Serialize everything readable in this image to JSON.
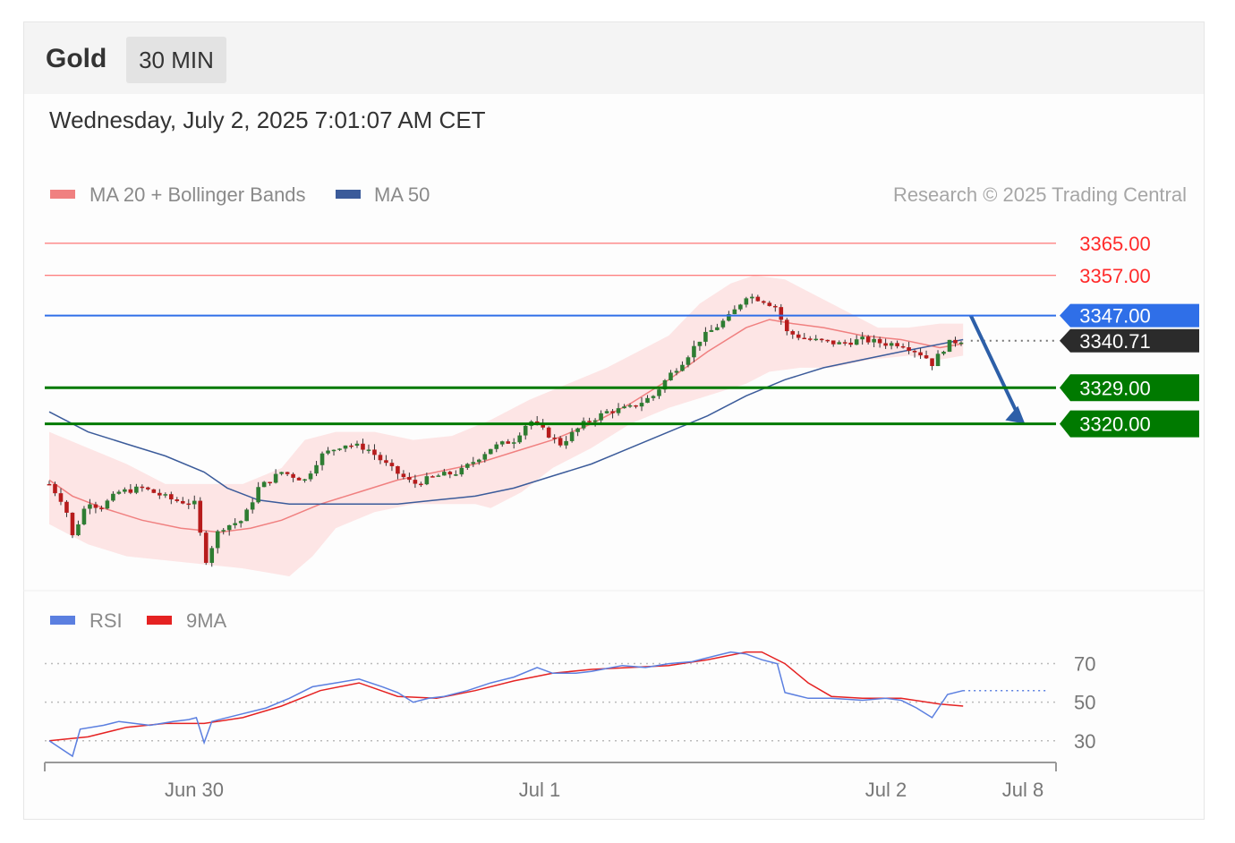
{
  "header": {
    "instrument": "Gold",
    "period": "30 MIN"
  },
  "timestamp": "Wednesday, July 2, 2025 7:01:07 AM CET",
  "legend": {
    "ma20_label": "MA 20 + Bollinger Bands",
    "ma50_label": "MA 50",
    "copyright": "Research © 2025 Trading Central",
    "rsi_label": "RSI",
    "rsi_ma_label": "9MA"
  },
  "colors": {
    "ma20": "#f08080",
    "bands": "#fde0e0",
    "ma50": "#3b5b9a",
    "bull": "#2e7d32",
    "bear": "#b71c1c",
    "resistance": "#ff2a2a",
    "pivot": "#2f6fe8",
    "support": "#007a00",
    "last": "#2b2b2b",
    "arrow": "#2d5fa8",
    "rsi": "#5b7fe0",
    "rsi_ma": "#e52222"
  },
  "chart_data": [
    {
      "type": "candlestick",
      "title": "Gold 30 MIN",
      "x_ticks": [
        "Jun 30",
        "Jul 1",
        "Jul 2",
        "Jul 8"
      ],
      "ylim": [
        3280,
        3371
      ],
      "levels": [
        {
          "name": "resistance-2",
          "value": 3365.0,
          "label": "3365.00",
          "kind": "resistance"
        },
        {
          "name": "resistance-1",
          "value": 3357.0,
          "label": "3357.00",
          "kind": "resistance"
        },
        {
          "name": "pivot",
          "value": 3347.0,
          "label": "3347.00",
          "kind": "pivot"
        },
        {
          "name": "last-price",
          "value": 3340.71,
          "label": "3340.71",
          "kind": "last"
        },
        {
          "name": "support-1",
          "value": 3329.0,
          "label": "3329.00",
          "kind": "support"
        },
        {
          "name": "support-2",
          "value": 3320.0,
          "label": "3320.00",
          "kind": "support"
        }
      ],
      "close_path": [
        [
          0,
          3305
        ],
        [
          4,
          3300
        ],
        [
          6,
          3292
        ],
        [
          10,
          3301
        ],
        [
          13,
          3299
        ],
        [
          18,
          3303
        ],
        [
          24,
          3304
        ],
        [
          32,
          3301
        ],
        [
          38,
          3300
        ],
        [
          40,
          3285
        ],
        [
          44,
          3294
        ],
        [
          50,
          3296
        ],
        [
          54,
          3304
        ],
        [
          60,
          3308
        ],
        [
          66,
          3306
        ],
        [
          70,
          3312
        ],
        [
          76,
          3315
        ],
        [
          82,
          3314
        ],
        [
          88,
          3309
        ],
        [
          94,
          3305
        ],
        [
          100,
          3307
        ],
        [
          106,
          3308
        ],
        [
          110,
          3311
        ],
        [
          114,
          3314
        ],
        [
          120,
          3316
        ],
        [
          124,
          3321
        ],
        [
          128,
          3318
        ],
        [
          132,
          3315
        ],
        [
          138,
          3320
        ],
        [
          144,
          3323
        ],
        [
          150,
          3324
        ],
        [
          156,
          3327
        ],
        [
          160,
          3332
        ],
        [
          164,
          3336
        ],
        [
          168,
          3341
        ],
        [
          172,
          3344
        ],
        [
          176,
          3347
        ],
        [
          180,
          3352
        ],
        [
          184,
          3351
        ],
        [
          188,
          3349
        ],
        [
          190,
          3343
        ],
        [
          196,
          3341
        ],
        [
          204,
          3340
        ],
        [
          210,
          3341
        ],
        [
          216,
          3340
        ],
        [
          220,
          3340
        ],
        [
          226,
          3337
        ],
        [
          228,
          3335
        ],
        [
          232,
          3340
        ],
        [
          236,
          3341
        ]
      ],
      "ma20": [
        [
          0,
          3306
        ],
        [
          6,
          3302
        ],
        [
          14,
          3299
        ],
        [
          24,
          3296
        ],
        [
          34,
          3294
        ],
        [
          44,
          3293
        ],
        [
          52,
          3294
        ],
        [
          60,
          3296
        ],
        [
          70,
          3300
        ],
        [
          80,
          3303
        ],
        [
          90,
          3306
        ],
        [
          100,
          3308
        ],
        [
          110,
          3310
        ],
        [
          120,
          3313
        ],
        [
          130,
          3316
        ],
        [
          140,
          3320
        ],
        [
          150,
          3325
        ],
        [
          160,
          3331
        ],
        [
          170,
          3338
        ],
        [
          180,
          3344
        ],
        [
          186,
          3346
        ],
        [
          192,
          3345
        ],
        [
          200,
          3344
        ],
        [
          210,
          3342
        ],
        [
          220,
          3341
        ],
        [
          230,
          3339
        ],
        [
          236,
          3340
        ]
      ],
      "bb_upper": [
        [
          0,
          3318
        ],
        [
          10,
          3314
        ],
        [
          20,
          3310
        ],
        [
          30,
          3305
        ],
        [
          40,
          3305
        ],
        [
          50,
          3305
        ],
        [
          60,
          3309
        ],
        [
          66,
          3316
        ],
        [
          74,
          3318
        ],
        [
          84,
          3318
        ],
        [
          94,
          3316
        ],
        [
          104,
          3317
        ],
        [
          114,
          3321
        ],
        [
          124,
          3326
        ],
        [
          134,
          3330
        ],
        [
          144,
          3334
        ],
        [
          152,
          3338
        ],
        [
          160,
          3342
        ],
        [
          168,
          3350
        ],
        [
          176,
          3355
        ],
        [
          182,
          3357
        ],
        [
          190,
          3356
        ],
        [
          198,
          3352
        ],
        [
          206,
          3348
        ],
        [
          214,
          3344
        ],
        [
          222,
          3344
        ],
        [
          230,
          3345
        ],
        [
          236,
          3345
        ]
      ],
      "bb_lower": [
        [
          0,
          3295
        ],
        [
          10,
          3290
        ],
        [
          20,
          3287
        ],
        [
          30,
          3286
        ],
        [
          40,
          3285
        ],
        [
          50,
          3284
        ],
        [
          56,
          3283
        ],
        [
          62,
          3282
        ],
        [
          68,
          3287
        ],
        [
          74,
          3294
        ],
        [
          84,
          3298
        ],
        [
          94,
          3300
        ],
        [
          104,
          3300
        ],
        [
          110,
          3300
        ],
        [
          114,
          3299
        ],
        [
          122,
          3303
        ],
        [
          130,
          3309
        ],
        [
          140,
          3314
        ],
        [
          150,
          3320
        ],
        [
          160,
          3324
        ],
        [
          170,
          3327
        ],
        [
          180,
          3330
        ],
        [
          186,
          3333
        ],
        [
          194,
          3334
        ],
        [
          202,
          3334
        ],
        [
          212,
          3336
        ],
        [
          222,
          3337
        ],
        [
          230,
          3336
        ],
        [
          236,
          3337
        ]
      ],
      "ma50": [
        [
          0,
          3323
        ],
        [
          10,
          3318
        ],
        [
          20,
          3315
        ],
        [
          30,
          3312
        ],
        [
          40,
          3308
        ],
        [
          46,
          3304
        ],
        [
          54,
          3301
        ],
        [
          62,
          3300
        ],
        [
          70,
          3300
        ],
        [
          80,
          3300
        ],
        [
          90,
          3300
        ],
        [
          100,
          3301
        ],
        [
          110,
          3302
        ],
        [
          120,
          3304
        ],
        [
          130,
          3307
        ],
        [
          140,
          3310
        ],
        [
          150,
          3314
        ],
        [
          160,
          3318
        ],
        [
          170,
          3322
        ],
        [
          180,
          3327
        ],
        [
          190,
          3331
        ],
        [
          200,
          3334
        ],
        [
          210,
          3336
        ],
        [
          220,
          3338
        ],
        [
          236,
          3341
        ]
      ],
      "projection": {
        "from": [
          3347,
          238
        ],
        "to": [
          3320,
          252
        ]
      },
      "forecast_dotted": {
        "value": 3340.71,
        "from": 238,
        "to": 260
      }
    },
    {
      "type": "line",
      "title": "RSI",
      "ylim": [
        22,
        80
      ],
      "levels": [
        70,
        50,
        30
      ],
      "rsi": [
        [
          0,
          30
        ],
        [
          6,
          22
        ],
        [
          8,
          36
        ],
        [
          14,
          38
        ],
        [
          18,
          40
        ],
        [
          22,
          39
        ],
        [
          26,
          38
        ],
        [
          32,
          40
        ],
        [
          36,
          41
        ],
        [
          38,
          42
        ],
        [
          40,
          29
        ],
        [
          42,
          40
        ],
        [
          48,
          43
        ],
        [
          56,
          47
        ],
        [
          62,
          52
        ],
        [
          68,
          58
        ],
        [
          74,
          60
        ],
        [
          80,
          62
        ],
        [
          86,
          58
        ],
        [
          90,
          55
        ],
        [
          94,
          50
        ],
        [
          98,
          52
        ],
        [
          102,
          53
        ],
        [
          108,
          56
        ],
        [
          114,
          60
        ],
        [
          120,
          63
        ],
        [
          126,
          68
        ],
        [
          130,
          65
        ],
        [
          136,
          65
        ],
        [
          140,
          66
        ],
        [
          148,
          69
        ],
        [
          154,
          68
        ],
        [
          160,
          70
        ],
        [
          166,
          71
        ],
        [
          172,
          74
        ],
        [
          176,
          76
        ],
        [
          180,
          75
        ],
        [
          184,
          72
        ],
        [
          188,
          70
        ],
        [
          190,
          55
        ],
        [
          196,
          52
        ],
        [
          202,
          52
        ],
        [
          210,
          51
        ],
        [
          216,
          52
        ],
        [
          220,
          51
        ],
        [
          224,
          47
        ],
        [
          228,
          42
        ],
        [
          232,
          54
        ],
        [
          236,
          56
        ]
      ],
      "rsi_ma": [
        [
          0,
          30
        ],
        [
          10,
          32
        ],
        [
          20,
          37
        ],
        [
          30,
          39
        ],
        [
          40,
          39
        ],
        [
          50,
          42
        ],
        [
          60,
          48
        ],
        [
          70,
          56
        ],
        [
          80,
          60
        ],
        [
          90,
          53
        ],
        [
          100,
          52
        ],
        [
          110,
          56
        ],
        [
          120,
          61
        ],
        [
          130,
          65
        ],
        [
          140,
          67
        ],
        [
          150,
          68
        ],
        [
          160,
          69
        ],
        [
          170,
          72
        ],
        [
          180,
          76
        ],
        [
          184,
          76
        ],
        [
          190,
          70
        ],
        [
          196,
          60
        ],
        [
          202,
          53
        ],
        [
          210,
          52
        ],
        [
          220,
          52
        ],
        [
          230,
          49
        ],
        [
          236,
          48
        ]
      ],
      "rsi_forecast": {
        "value": 56,
        "from": 236,
        "to": 258
      }
    }
  ]
}
